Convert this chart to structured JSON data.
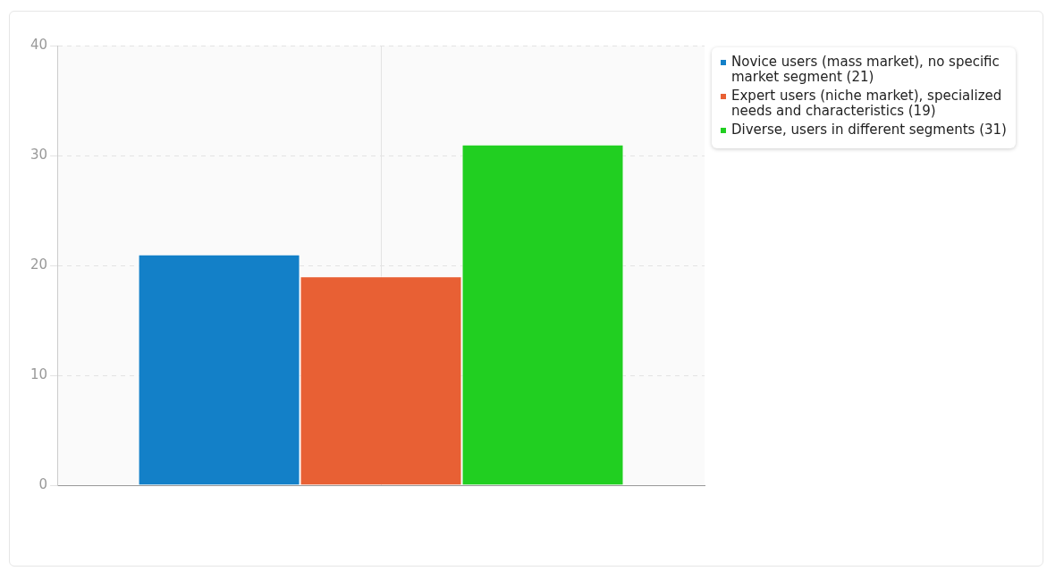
{
  "chart_data": {
    "type": "bar",
    "categories": [
      null
    ],
    "series": [
      {
        "name": "Novice users (mass market), no specific market segment (21)",
        "color": "#1380c8",
        "values": [
          21
        ]
      },
      {
        "name": "Expert users (niche market), specialized needs and characteristics (19)",
        "color": "#e86034",
        "values": [
          19
        ]
      },
      {
        "name": "Diverse, users in different segments (31)",
        "color": "#21cf21",
        "values": [
          31
        ]
      }
    ],
    "ylim": [
      0,
      40
    ],
    "yticks": [
      0,
      10,
      20,
      30,
      40
    ],
    "grid": true,
    "legend": "top right",
    "tick_labels": "y"
  }
}
